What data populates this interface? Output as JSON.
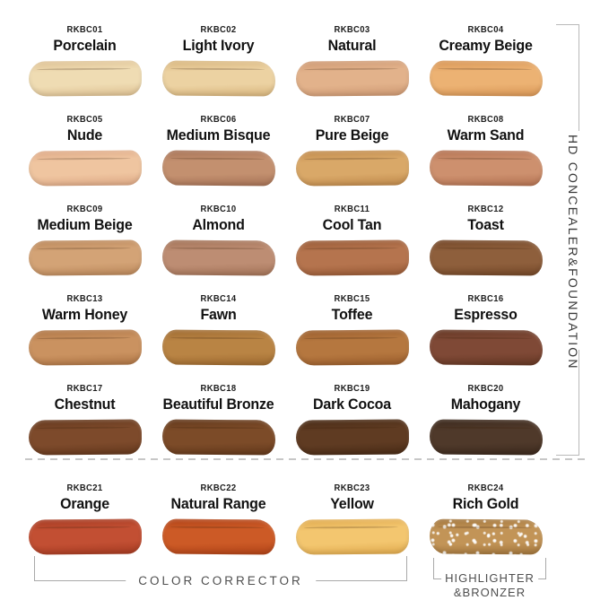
{
  "shades": [
    {
      "code": "RKBC01",
      "name": "Porcelain",
      "color": "#efdcb3",
      "color_dark": "#ddc092"
    },
    {
      "code": "RKBC02",
      "name": "Light Ivory",
      "color": "#ecd2a2",
      "color_dark": "#d7b47c"
    },
    {
      "code": "RKBC03",
      "name": "Natural",
      "color": "#e2b28b",
      "color_dark": "#cd9872"
    },
    {
      "code": "RKBC04",
      "name": "Creamy Beige",
      "color": "#ecb273",
      "color_dark": "#d79555"
    },
    {
      "code": "RKBC05",
      "name": "Nude",
      "color": "#efc5a0",
      "color_dark": "#dda885"
    },
    {
      "code": "RKBC06",
      "name": "Medium Bisque",
      "color": "#c3906f",
      "color_dark": "#a67256"
    },
    {
      "code": "RKBC07",
      "name": "Pure Beige",
      "color": "#d9a868",
      "color_dark": "#c08a4c"
    },
    {
      "code": "RKBC08",
      "name": "Warm Sand",
      "color": "#cd906e",
      "color_dark": "#b37252"
    },
    {
      "code": "RKBC09",
      "name": "Medium Beige",
      "color": "#d3a376",
      "color_dark": "#ba875a"
    },
    {
      "code": "RKBC10",
      "name": "Almond",
      "color": "#bd8d73",
      "color_dark": "#a27257"
    },
    {
      "code": "RKBC11",
      "name": "Cool Tan",
      "color": "#b5744e",
      "color_dark": "#985a36"
    },
    {
      "code": "RKBC12",
      "name": "Toast",
      "color": "#8e5f3c",
      "color_dark": "#734728"
    },
    {
      "code": "RKBC13",
      "name": "Warm Honey",
      "color": "#ca9260",
      "color_dark": "#ae7545"
    },
    {
      "code": "RKBC14",
      "name": "Fawn",
      "color": "#b98444",
      "color_dark": "#9e6a30"
    },
    {
      "code": "RKBC15",
      "name": "Toffee",
      "color": "#b5773f",
      "color_dark": "#9a5d2c"
    },
    {
      "code": "RKBC16",
      "name": "Espresso",
      "color": "#7f4936",
      "color_dark": "#643724"
    },
    {
      "code": "RKBC17",
      "name": "Chestnut",
      "color": "#7d4a2b",
      "color_dark": "#64381d"
    },
    {
      "code": "RKBC18",
      "name": "Beautiful Bronze",
      "color": "#7c4b28",
      "color_dark": "#62381b"
    },
    {
      "code": "RKBC19",
      "name": "Dark Cocoa",
      "color": "#5f3b22",
      "color_dark": "#482b16"
    },
    {
      "code": "RKBC20",
      "name": "Mahogany",
      "color": "#4f392a",
      "color_dark": "#3b291d"
    },
    {
      "code": "RKBC21",
      "name": "Orange",
      "color": "#c24f33",
      "color_dark": "#a53b22"
    },
    {
      "code": "RKBC22",
      "name": "Natural Range",
      "color": "#cc5a26",
      "color_dark": "#b04318"
    },
    {
      "code": "RKBC23",
      "name": "Yellow",
      "color": "#f3c66f",
      "color_dark": "#e0aa4e"
    },
    {
      "code": "RKBC24",
      "name": "Rich Gold",
      "color": "#c29457",
      "color_dark": "#a1753c"
    }
  ],
  "right_label": {
    "text": "HD CONCEALER&FOUNDATION"
  },
  "bottom": {
    "color_corrector": "COLOR CORRECTOR",
    "highlighter_line1": "HIGHLIGHTER",
    "highlighter_line2": "&BRONZER"
  }
}
